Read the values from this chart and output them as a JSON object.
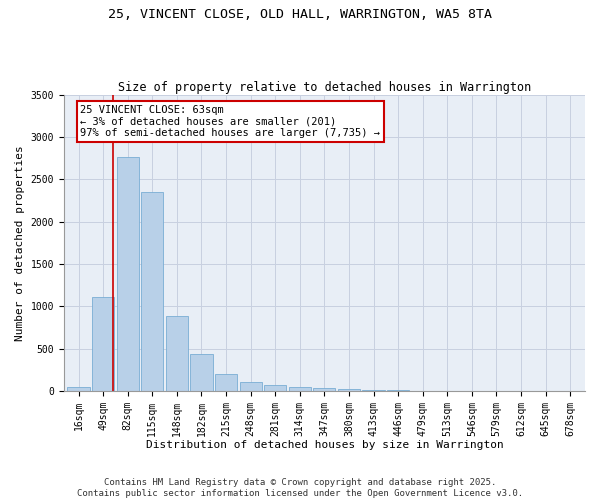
{
  "title_line1": "25, VINCENT CLOSE, OLD HALL, WARRINGTON, WA5 8TA",
  "title_line2": "Size of property relative to detached houses in Warrington",
  "xlabel": "Distribution of detached houses by size in Warrington",
  "ylabel": "Number of detached properties",
  "bar_color": "#b8d0e8",
  "bar_edge_color": "#7aadd4",
  "bg_color": "#e8eef6",
  "grid_color": "#c8d0e0",
  "categories": [
    "16sqm",
    "49sqm",
    "82sqm",
    "115sqm",
    "148sqm",
    "182sqm",
    "215sqm",
    "248sqm",
    "281sqm",
    "314sqm",
    "347sqm",
    "380sqm",
    "413sqm",
    "446sqm",
    "479sqm",
    "513sqm",
    "546sqm",
    "579sqm",
    "612sqm",
    "645sqm",
    "678sqm"
  ],
  "values": [
    50,
    1110,
    2760,
    2350,
    880,
    440,
    200,
    100,
    75,
    50,
    35,
    20,
    12,
    5,
    3,
    2,
    1,
    1,
    0,
    0,
    0
  ],
  "property_line_x": 1.42,
  "property_line_label": "25 VINCENT CLOSE: 63sqm",
  "annotation_line1": "← 3% of detached houses are smaller (201)",
  "annotation_line2": "97% of semi-detached houses are larger (7,735) →",
  "red_line_color": "#cc0000",
  "footnote1": "Contains HM Land Registry data © Crown copyright and database right 2025.",
  "footnote2": "Contains public sector information licensed under the Open Government Licence v3.0.",
  "ylim": [
    0,
    3500
  ],
  "yticks": [
    0,
    500,
    1000,
    1500,
    2000,
    2500,
    3000,
    3500
  ],
  "title_fontsize": 9.5,
  "subtitle_fontsize": 8.5,
  "axis_label_fontsize": 8,
  "tick_fontsize": 7,
  "annotation_fontsize": 7.5,
  "footnote_fontsize": 6.5
}
